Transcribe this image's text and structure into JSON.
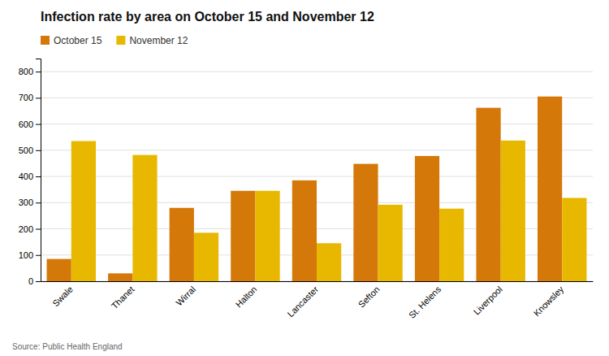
{
  "chart_data": {
    "type": "bar",
    "title": "Infection rate by area on October 15 and November 12",
    "categories": [
      "Swale",
      "Thanet",
      "Wirral",
      "Halton",
      "Lancaster",
      "Sefton",
      "St. Helens",
      "Liverpool",
      "Knowsley"
    ],
    "series": [
      {
        "name": "October 15",
        "color": "#D4780A",
        "values": [
          85,
          30,
          280,
          345,
          385,
          448,
          478,
          662,
          705
        ]
      },
      {
        "name": "November 12",
        "color": "#E8B800",
        "values": [
          535,
          482,
          185,
          345,
          145,
          292,
          277,
          537,
          318
        ]
      }
    ],
    "ylim": [
      0,
      850
    ],
    "yticks": [
      0,
      100,
      200,
      300,
      400,
      500,
      600,
      700,
      800
    ],
    "grid": true,
    "legend": "upper left",
    "annotations": [
      "Source: Public Health England"
    ]
  }
}
